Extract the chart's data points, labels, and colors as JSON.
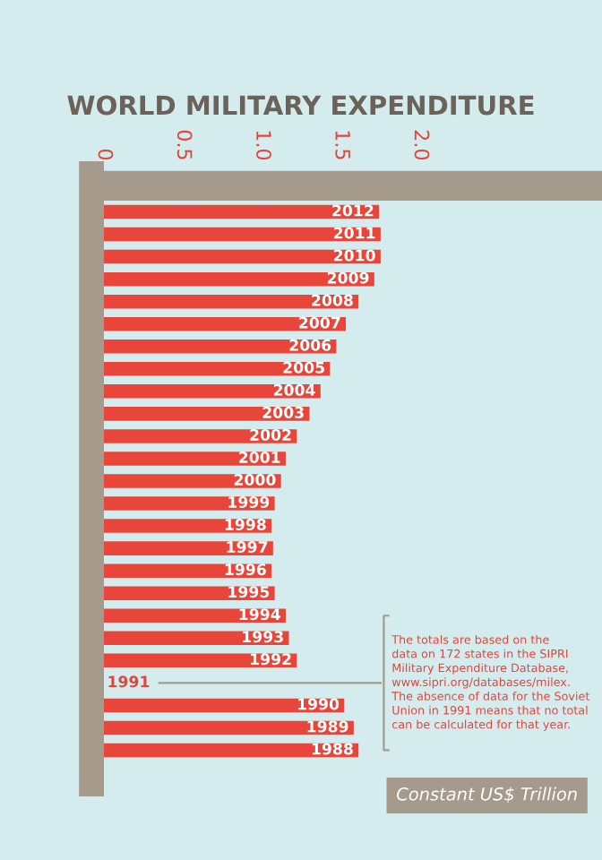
{
  "chart_data": {
    "type": "bar",
    "orientation": "horizontal",
    "title": "WORLD MILITARY EXPENDITURE",
    "xlabel": "Constant US$ Trillion",
    "categories": [
      "2012",
      "2011",
      "2010",
      "2009",
      "2008",
      "2007",
      "2006",
      "2005",
      "2004",
      "2003",
      "2002",
      "2001",
      "2000",
      "1999",
      "1998",
      "1997",
      "1996",
      "1995",
      "1994",
      "1993",
      "1992",
      "1991",
      "1990",
      "1989",
      "1988"
    ],
    "values": [
      1.74,
      1.75,
      1.75,
      1.71,
      1.61,
      1.53,
      1.47,
      1.43,
      1.37,
      1.3,
      1.22,
      1.15,
      1.12,
      1.08,
      1.06,
      1.07,
      1.06,
      1.08,
      1.15,
      1.17,
      1.22,
      null,
      1.52,
      1.58,
      1.61
    ],
    "color": "#e8463a",
    "xlim": [
      0,
      3.15
    ],
    "xticks": [
      0,
      0.5,
      {
        "value": 1,
        "label": "1.0"
      },
      1.5,
      {
        "value": 2,
        "label": "2.0"
      }
    ],
    "grid": false,
    "legend": false,
    "annotations": [
      "The totals are based on the\ndata on 172 states in the SIPRI\nMilitary Expenditure Database,\nwww.sipri.org/databases/milex.\nThe absence of data for the Soviet\nUnion in 1991 means that no total\ncan be calculated for that year."
    ]
  }
}
